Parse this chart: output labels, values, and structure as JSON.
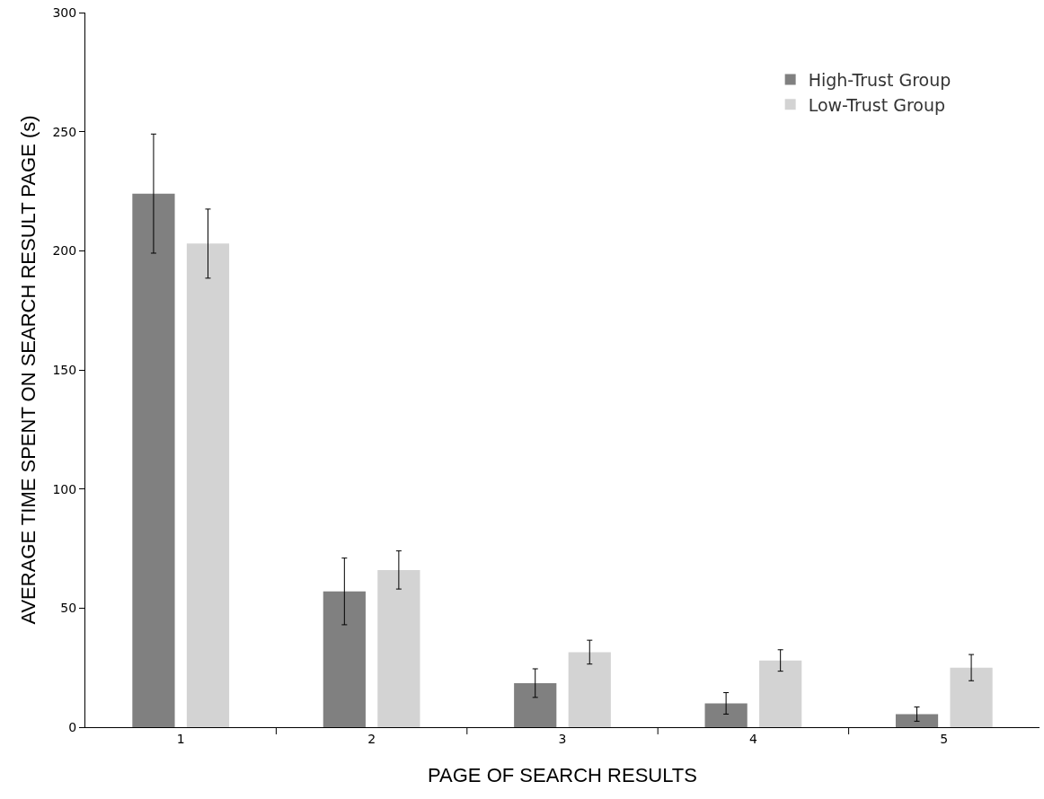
{
  "chart_data": {
    "type": "bar",
    "xlabel": "PAGE OF SEARCH RESULTS",
    "ylabel": "AVERAGE TIME SPENT ON SEARCH RESULT PAGE (s)",
    "categories": [
      "1",
      "2",
      "3",
      "4",
      "5"
    ],
    "series": [
      {
        "name": "High-Trust Group",
        "color": "#808080",
        "values": [
          224,
          57,
          18.5,
          10,
          5.5
        ],
        "errors": [
          25,
          14,
          6,
          4.5,
          3
        ]
      },
      {
        "name": "Low-Trust Group",
        "color": "#d3d3d3",
        "values": [
          203,
          66,
          31.5,
          28,
          25
        ],
        "errors": [
          14.5,
          8,
          5,
          4.5,
          5.5
        ]
      }
    ],
    "ylim": [
      0,
      300
    ],
    "yticks": [
      0,
      50,
      100,
      150,
      200,
      250,
      300
    ],
    "grid": false,
    "legend": "top right"
  }
}
